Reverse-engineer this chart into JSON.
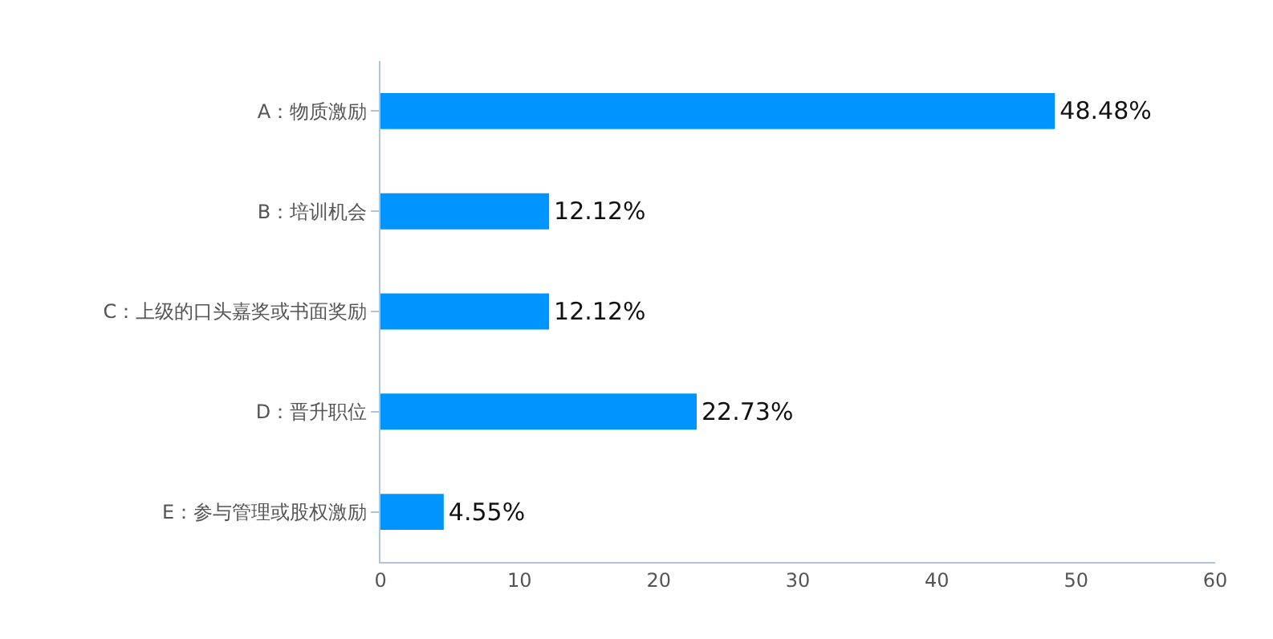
{
  "chart_data": {
    "type": "bar",
    "orientation": "horizontal",
    "categories": [
      "A：物质激励",
      "B：培训机会",
      "C：上级的口头嘉奖或书面奖励",
      "D：晋升职位",
      "E：参与管理或股权激励"
    ],
    "values": [
      48.48,
      12.12,
      12.12,
      22.73,
      4.55
    ],
    "value_labels": [
      "48.48%",
      "12.12%",
      "12.12%",
      "22.73%",
      "4.55%"
    ],
    "color": "#0094ff",
    "xlim": [
      0,
      60
    ],
    "xticks": [
      0,
      10,
      20,
      30,
      40,
      50,
      60
    ]
  }
}
